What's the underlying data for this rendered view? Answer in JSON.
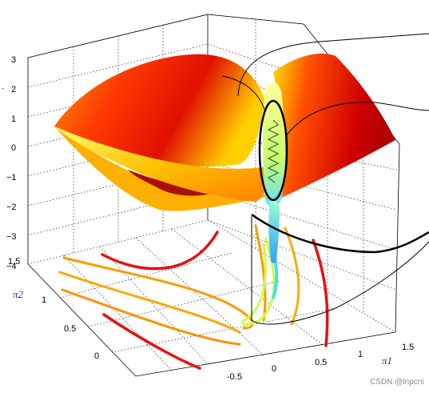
{
  "chart_data": {
    "type": "surface3d",
    "title": "",
    "xlabel": "π1",
    "ylabel": "π2",
    "zlabel": "",
    "xlim": [
      -1,
      1.5
    ],
    "ylim": [
      -0.5,
      1.5
    ],
    "zlim": [
      -4,
      3
    ],
    "x_ticks": [
      "-0.5",
      "0",
      "0.5",
      "1",
      "1.5"
    ],
    "y_ticks": [
      "1.5",
      "1",
      "0.5",
      "0"
    ],
    "z_ticks": [
      "3",
      "2",
      "1",
      "0",
      "−1",
      "−2",
      "−3",
      "−4"
    ],
    "grid": true,
    "colormap": [
      "#ffff66",
      "#ffcc00",
      "#ff6600",
      "#cc0000",
      "#a00000"
    ],
    "contour_colors": {
      "outer": "#e01010",
      "mid": "#ff9900",
      "inner": "#ccff44",
      "core": "#33ccff"
    }
  },
  "watermark": "CSDN @lnpcrs"
}
